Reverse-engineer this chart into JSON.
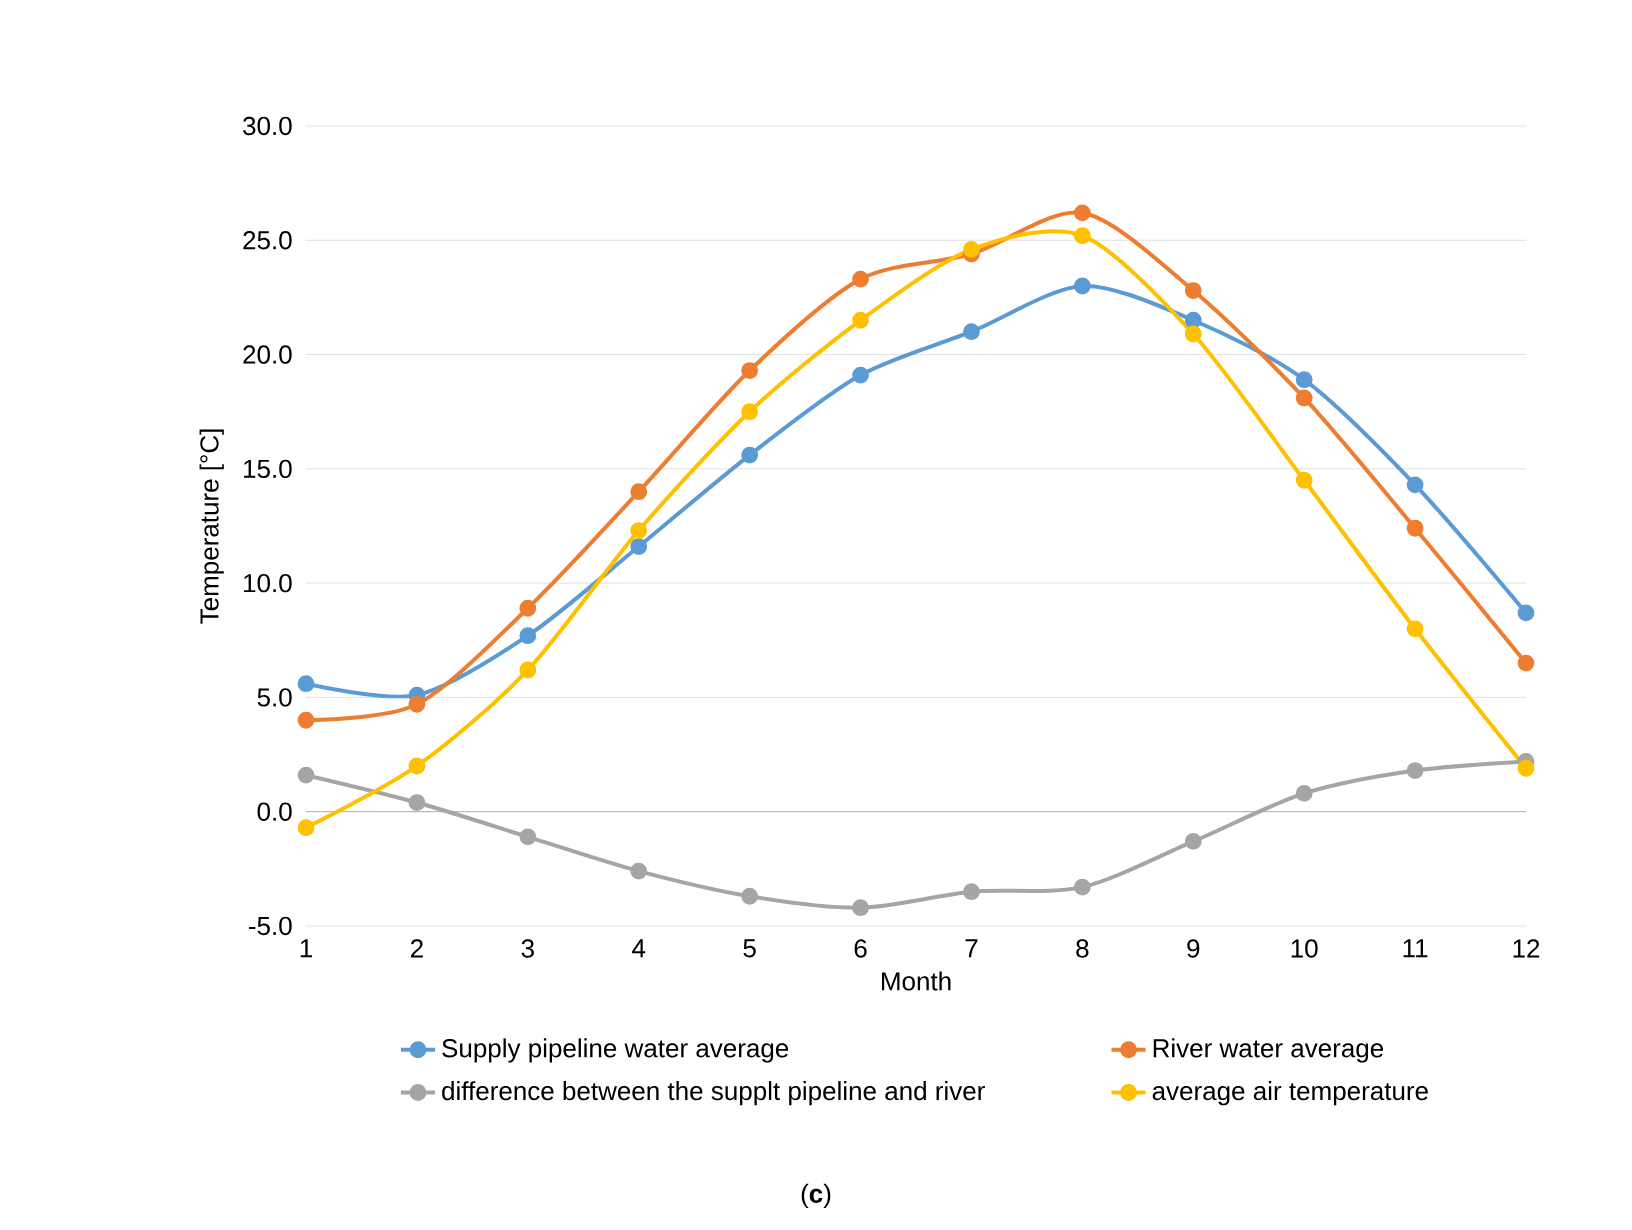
{
  "chart_data": {
    "type": "line",
    "xlabel": "Month",
    "ylabel": "Temperature  [°C]",
    "categories": [
      "1",
      "2",
      "3",
      "4",
      "5",
      "6",
      "7",
      "8",
      "9",
      "10",
      "11",
      "12"
    ],
    "series": [
      {
        "name": "Supply pipeline water average",
        "color": "#5b9bd5",
        "values": [
          5.6,
          5.1,
          7.7,
          11.6,
          15.6,
          19.1,
          21.0,
          23.0,
          21.5,
          18.9,
          14.3,
          8.7
        ]
      },
      {
        "name": "River water average",
        "color": "#ed7d31",
        "values": [
          4.0,
          4.7,
          8.9,
          14.0,
          19.3,
          23.3,
          24.4,
          26.2,
          22.8,
          18.1,
          12.4,
          6.5
        ]
      },
      {
        "name": "difference between the supplt pipeline and river",
        "color": "#a5a5a5",
        "values": [
          1.6,
          0.4,
          -1.1,
          -2.6,
          -3.7,
          -4.2,
          -3.5,
          -3.3,
          -1.3,
          0.8,
          1.8,
          2.2
        ]
      },
      {
        "name": "average air temperature",
        "color": "#ffc000",
        "values": [
          -0.7,
          2.0,
          6.2,
          12.3,
          17.5,
          21.5,
          24.6,
          25.2,
          20.9,
          14.5,
          8.0,
          1.9
        ]
      }
    ],
    "ylim": [
      -5,
      30
    ],
    "yticks": [
      {
        "value": -5,
        "label": "-5.0"
      },
      {
        "value": 0,
        "label": "0.0"
      },
      {
        "value": 5,
        "label": "5.0"
      },
      {
        "value": 10,
        "label": "10.0"
      },
      {
        "value": 15,
        "label": "15.0"
      },
      {
        "value": 20,
        "label": "20.0"
      },
      {
        "value": 25,
        "label": "25.0"
      },
      {
        "value": 30,
        "label": "30.0"
      }
    ],
    "grid": "y",
    "legend": "bottom",
    "marker": "circle",
    "line_style": "solid",
    "annotations": [
      "(**c**)"
    ]
  }
}
